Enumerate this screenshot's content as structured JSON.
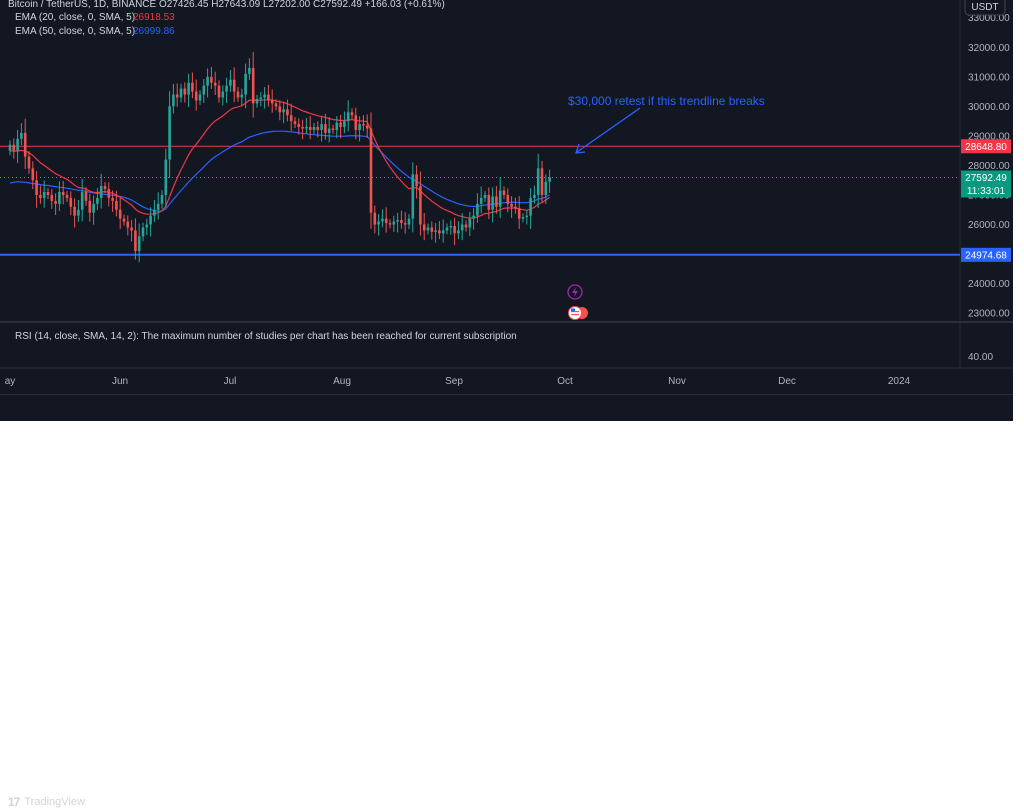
{
  "header": {
    "symbol_line": "Bitcoin / TetherUS, 1D, BINANCE  O27426.45  H27643.09  L27202.00  C27592.49  +166.03 (+0.61%)",
    "currency_button": "USDT",
    "ema20_label": "EMA (20, close, 0, SMA, 5)",
    "ema20_value": "26918.53",
    "ema50_label": "EMA (50, close, 0, SMA, 5)",
    "ema50_value": "26999.86"
  },
  "rsi_panel": {
    "message": "RSI (14, close, SMA, 14, 2): The maximum number of studies per chart has been reached for current subscription",
    "axis_label": "40.00"
  },
  "brand": {
    "name": "TradingView",
    "mark": "17"
  },
  "colors": {
    "background": "#131722",
    "candle_up": "#26a69a",
    "candle_down": "#ef5350",
    "ema20": "#f23645",
    "ema50": "#2962ff",
    "resistance": "#f23645",
    "support": "#2962ff",
    "annotation": "#2962ff"
  },
  "chart_data": {
    "type": "candlestick",
    "symbol": "Bitcoin / TetherUS",
    "interval": "1D",
    "exchange": "BINANCE",
    "ohlc_last": {
      "open": 27426.45,
      "high": 27643.09,
      "low": 27202.0,
      "close": 27592.49,
      "change": "+166.03 (+0.61%)"
    },
    "ylim": [
      22700,
      33600
    ],
    "y_ticks": [
      "33000.00",
      "32000.00",
      "31000.00",
      "30000.00",
      "29000.00",
      "28000.00",
      "27000.00",
      "26000.00",
      "25000.00",
      "24000.00",
      "23000.00"
    ],
    "x_ticks": [
      "ay",
      "Jun",
      "Jul",
      "Aug",
      "Sep",
      "Oct",
      "Nov",
      "Dec",
      "2024"
    ],
    "price_labels": [
      {
        "text": "28648.80",
        "value": 28648.8
      },
      {
        "text": "27592.49",
        "value": 27592.49
      },
      {
        "text": "11:33:01",
        "value": 27592.49
      },
      {
        "text": "24974.68",
        "value": 24974.68
      }
    ],
    "horizontal_lines": [
      {
        "name": "resistance",
        "value": 28648.8
      },
      {
        "name": "support",
        "value": 24974.68
      }
    ],
    "annotation": {
      "text": "$30,000 retest if this trendline breaks"
    },
    "close_series": [
      28700,
      28500,
      28900,
      29100,
      28300,
      27900,
      27500,
      27000,
      26900,
      27100,
      27000,
      26800,
      26700,
      27100,
      27000,
      26900,
      26600,
      26300,
      26500,
      27100,
      26800,
      26400,
      26700,
      26900,
      27300,
      27200,
      26900,
      26800,
      26500,
      26200,
      26100,
      25900,
      25800,
      25100,
      25600,
      25900,
      26000,
      26300,
      26500,
      26700,
      27000,
      28200,
      30000,
      30400,
      30300,
      30600,
      30400,
      30800,
      30500,
      30200,
      30400,
      30700,
      31000,
      30800,
      30700,
      30300,
      30500,
      30700,
      30900,
      30500,
      30300,
      30400,
      31100,
      31300,
      30100,
      30250,
      30300,
      30400,
      30200,
      30100,
      30000,
      29800,
      29900,
      29700,
      29500,
      29400,
      29300,
      29250,
      29300,
      29200,
      29300,
      29200,
      29400,
      29100,
      29250,
      29200,
      29450,
      29300,
      29500,
      29800,
      29700,
      29200,
      29400,
      29350,
      29250,
      26400,
      26000,
      26100,
      26200,
      26050,
      26000,
      26100,
      26150,
      26050,
      26000,
      26200,
      27700,
      27300,
      26000,
      25800,
      25900,
      25750,
      25800,
      25700,
      25800,
      25900,
      25950,
      25700,
      25800,
      26000,
      25900,
      26200,
      26300,
      26700,
      26900,
      27000,
      26500,
      26950,
      26600,
      27150,
      27000,
      26700,
      26600,
      26550,
      26200,
      26250,
      26300,
      26900,
      27000,
      27900,
      27000,
      27450,
      27592.49
    ],
    "ema20_series": [
      28500,
      28480,
      28490,
      28510,
      28490,
      28430,
      28340,
      28210,
      28090,
      28000,
      27910,
      27810,
      27720,
      27660,
      27590,
      27530,
      27440,
      27330,
      27250,
      27240,
      27200,
      27130,
      27090,
      27080,
      27100,
      27110,
      27090,
      27060,
      27000,
      26920,
      26840,
      26750,
      26660,
      26520,
      26430,
      26380,
      26350,
      26350,
      26370,
      26400,
      26460,
      26620,
      26940,
      27270,
      27570,
      27860,
      28100,
      28360,
      28560,
      28720,
      28880,
      29060,
      29240,
      29390,
      29510,
      29590,
      29680,
      29780,
      29890,
      29950,
      29980,
      30020,
      30110,
      30210,
      30200,
      30200,
      30210,
      30220,
      30220,
      30210,
      30190,
      30150,
      30130,
      30090,
      30030,
      29970,
      29910,
      29850,
      29810,
      29760,
      29720,
      29680,
      29660,
      29620,
      29590,
      29550,
      29540,
      29520,
      29520,
      29540,
      29550,
      29520,
      29510,
      29500,
      29480,
      29180,
      28880,
      28600,
      28370,
      28140,
      27940,
      27770,
      27610,
      27460,
      27320,
      27210,
      27250,
      27250,
      27130,
      27010,
      26900,
      26790,
      26700,
      26610,
      26530,
      26470,
      26420,
      26350,
      26300,
      26270,
      26230,
      26220,
      26220,
      26260,
      26310,
      26370,
      26380,
      26420,
      26440,
      26500,
      26550,
      26560,
      26560,
      26560,
      26530,
      26500,
      26480,
      26530,
      26580,
      26700,
      26740,
      26830,
      26918.53
    ],
    "ema50_series": [
      27400,
      27430,
      27450,
      27440,
      27430,
      27410,
      27390,
      27370,
      27350,
      27330,
      27320,
      27300,
      27280,
      27260,
      27250,
      27230,
      27210,
      27180,
      27160,
      27140,
      27120,
      27090,
      27070,
      27050,
      27040,
      27020,
      27010,
      26990,
      26970,
      26950,
      26920,
      26880,
      26830,
      26750,
      26670,
      26600,
      26540,
      26500,
      26470,
      26450,
      26460,
      26530,
      26690,
      26850,
      27000,
      27150,
      27290,
      27440,
      27570,
      27700,
      27820,
      27950,
      28080,
      28200,
      28300,
      28380,
      28460,
      28540,
      28620,
      28690,
      28750,
      28800,
      28880,
      28960,
      29000,
      29040,
      29080,
      29110,
      29130,
      29150,
      29160,
      29160,
      29160,
      29150,
      29140,
      29120,
      29100,
      29080,
      29070,
      29050,
      29040,
      29030,
      29020,
      29010,
      29000,
      28990,
      28990,
      28990,
      28990,
      29000,
      29010,
      29000,
      29000,
      28990,
      28980,
      28830,
      28680,
      28540,
      28410,
      28280,
      28150,
      28030,
      27920,
      27800,
      27700,
      27600,
      27530,
      27460,
      27380,
      27290,
      27210,
      27130,
      27050,
      26980,
      26910,
      26850,
      26800,
      26750,
      26700,
      26670,
      26640,
      26620,
      26610,
      26620,
      26640,
      26660,
      26670,
      26690,
      26700,
      26720,
      26740,
      26750,
      26750,
      26750,
      26740,
      26740,
      26740,
      26770,
      26800,
      26860,
      26880,
      26930,
      26999.86
    ]
  }
}
